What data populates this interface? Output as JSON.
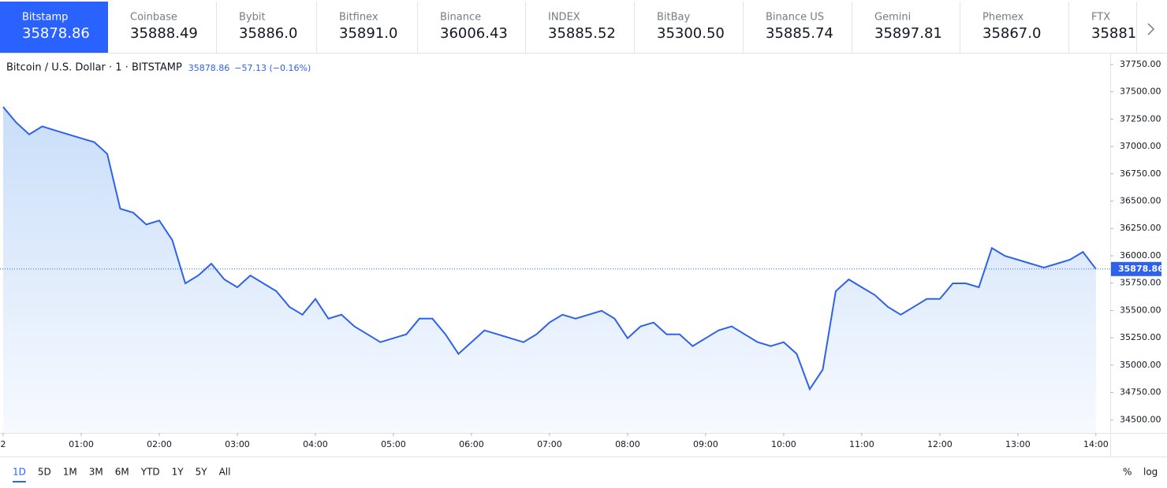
{
  "tabs": [
    {
      "name": "Bitstamp",
      "price": "35878.86"
    },
    {
      "name": "Coinbase",
      "price": "35888.49"
    },
    {
      "name": "Bybit",
      "price": "35886.0"
    },
    {
      "name": "Bitfinex",
      "price": "35891.0"
    },
    {
      "name": "Binance",
      "price": "36006.43"
    },
    {
      "name": "INDEX",
      "price": "35885.52"
    },
    {
      "name": "BitBay",
      "price": "35300.50"
    },
    {
      "name": "Binance US",
      "price": "35885.74"
    },
    {
      "name": "Gemini",
      "price": "35897.81"
    },
    {
      "name": "Phemex",
      "price": "35867.0"
    },
    {
      "name": "FTX",
      "price": "35881"
    }
  ],
  "chart_data": {
    "type": "line",
    "title": "Bitcoin / U.S. Dollar · 1 · BITSTAMP",
    "last_price": 35878.86,
    "change": "−57.13 (−0.16%)",
    "color": "#2f62ea",
    "x": [
      "00:00",
      "00:10",
      "00:20",
      "00:30",
      "00:40",
      "00:50",
      "01:00",
      "01:10",
      "01:20",
      "01:30",
      "01:40",
      "01:50",
      "02:00",
      "02:10",
      "02:20",
      "02:30",
      "02:40",
      "02:50",
      "03:00",
      "03:10",
      "03:20",
      "03:30",
      "03:40",
      "03:50",
      "04:00",
      "04:10",
      "04:20",
      "04:30",
      "04:40",
      "04:50",
      "05:00",
      "05:10",
      "05:20",
      "05:30",
      "05:40",
      "05:50",
      "06:00",
      "06:10",
      "06:20",
      "06:30",
      "06:40",
      "06:50",
      "07:00",
      "07:10",
      "07:20",
      "07:30",
      "07:40",
      "07:50",
      "08:00",
      "08:10",
      "08:20",
      "08:30",
      "08:40",
      "08:50",
      "09:00",
      "09:10",
      "09:20",
      "09:30",
      "09:40",
      "09:50",
      "10:00",
      "10:10",
      "10:20",
      "10:30",
      "10:40",
      "10:50",
      "11:00",
      "11:10",
      "11:20",
      "11:30",
      "11:40",
      "11:50",
      "12:00",
      "12:10",
      "12:20",
      "12:30",
      "12:40",
      "12:50",
      "13:00",
      "13:10",
      "13:20",
      "13:30",
      "13:40",
      "13:50",
      "14:00"
    ],
    "values": [
      37362,
      37219,
      37111,
      37183,
      37147,
      37111,
      37075,
      37040,
      36932,
      36430,
      36394,
      36286,
      36322,
      36143,
      35748,
      35820,
      35928,
      35784,
      35712,
      35820,
      35748,
      35676,
      35533,
      35461,
      35605,
      35425,
      35461,
      35354,
      35282,
      35210,
      35246,
      35282,
      35425,
      35425,
      35282,
      35103,
      35210,
      35318,
      35282,
      35246,
      35210,
      35282,
      35390,
      35461,
      35425,
      35461,
      35497,
      35425,
      35246,
      35354,
      35390,
      35282,
      35282,
      35174,
      35246,
      35318,
      35354,
      35282,
      35210,
      35174,
      35210,
      35103,
      34780,
      34959,
      35676,
      35784,
      35712,
      35641,
      35533,
      35461,
      35533,
      35605,
      35605,
      35748,
      35748,
      35712,
      36071,
      35999,
      35964,
      35928,
      35892,
      35928,
      35964,
      36035,
      35878.86
    ],
    "xlim": [
      "00:00",
      "14:11"
    ],
    "xticks": [
      {
        "value": "00:00",
        "label": "2"
      },
      "01:00",
      "02:00",
      "03:00",
      "04:00",
      "05:00",
      "06:00",
      "07:00",
      "08:00",
      "09:00",
      "10:00",
      "11:00",
      "12:00",
      "13:00",
      "14:00"
    ],
    "ylim": [
      34380,
      37850
    ],
    "yticks": [
      {
        "value": 34500,
        "label": "34500.00"
      },
      {
        "value": 34750,
        "label": "34750.00"
      },
      {
        "value": 35000,
        "label": "35000.00"
      },
      {
        "value": 35250,
        "label": "35250.00"
      },
      {
        "value": 35500,
        "label": "35500.00"
      },
      {
        "value": 35750,
        "label": "35750.00"
      },
      {
        "value": 36000,
        "label": "36000.00"
      },
      {
        "value": 36250,
        "label": "36250.00"
      },
      {
        "value": 36500,
        "label": "36500.00"
      },
      {
        "value": 36750,
        "label": "36750.00"
      },
      {
        "value": 37000,
        "label": "37000.00"
      },
      {
        "value": 37250,
        "label": "37250.00"
      },
      {
        "value": 37500,
        "label": "37500.00"
      },
      {
        "value": 37750,
        "label": "37750.00"
      }
    ]
  },
  "ranges": [
    "1D",
    "5D",
    "1M",
    "3M",
    "6M",
    "YTD",
    "1Y",
    "5Y",
    "All"
  ],
  "scale_buttons": [
    "%",
    "log"
  ]
}
